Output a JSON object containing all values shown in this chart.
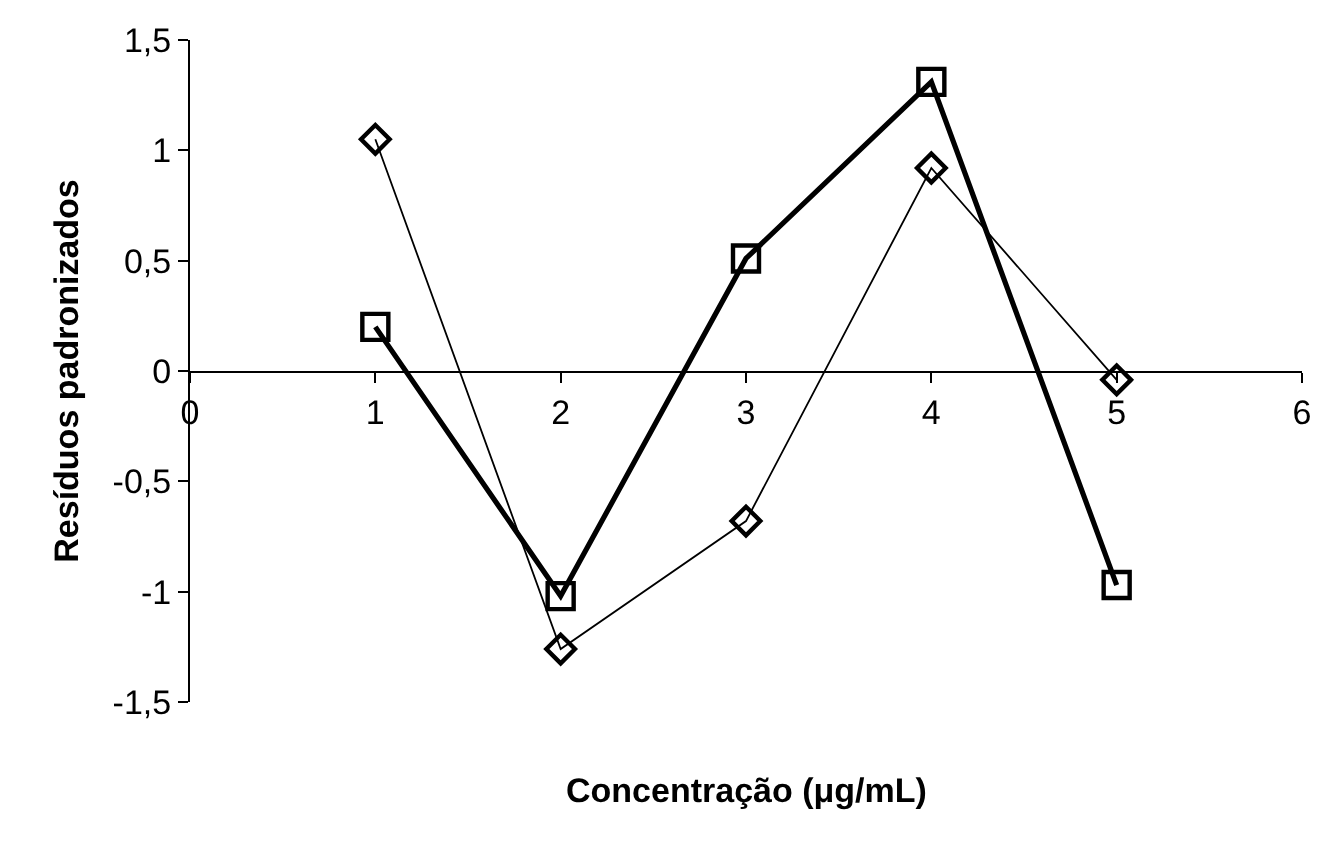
{
  "chart_data": {
    "type": "line",
    "xlabel": "Concentração (μg/mL)",
    "ylabel": "Resíduos padronizados",
    "x": [
      1,
      2,
      3,
      4,
      5
    ],
    "series": [
      {
        "color": "#000000",
        "marker": "square",
        "values": [
          0.2,
          -1.02,
          0.51,
          1.31,
          -0.97
        ]
      },
      {
        "color": "#000000",
        "marker": "diamond",
        "values": [
          1.05,
          -1.26,
          -0.68,
          0.92,
          -0.04
        ]
      }
    ],
    "xlim": [
      0,
      6
    ],
    "xticks": [
      0,
      1,
      2,
      3,
      4,
      5,
      6
    ],
    "ylim": [
      -1.5,
      1.5
    ],
    "yticks": [
      {
        "value": -1.5,
        "label": "-1,5"
      },
      -1,
      {
        "value": -0.5,
        "label": "-0,5"
      },
      0,
      {
        "value": 0.5,
        "label": "0,5"
      },
      1,
      {
        "value": 1.5,
        "label": "1,5"
      }
    ],
    "legend": false,
    "line_style": "solid"
  }
}
